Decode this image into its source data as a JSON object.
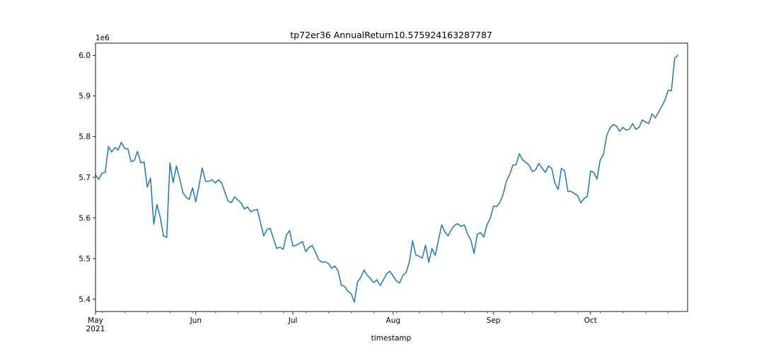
{
  "chart_data": {
    "type": "line",
    "title": "tp72er36 AnnualReturn10.575924163287787",
    "xlabel": "timestamp",
    "ylabel": "",
    "y_offset_label": "1e6",
    "ylim": [
      5.37,
      6.03
    ],
    "xlim": [
      "2021-05-01",
      "2021-10-31"
    ],
    "grid": false,
    "x_ticks": [
      {
        "date": "2021-05-01",
        "label": "May",
        "sublabel": "2021"
      },
      {
        "date": "2021-06-01",
        "label": "Jun",
        "sublabel": ""
      },
      {
        "date": "2021-07-01",
        "label": "Jul",
        "sublabel": ""
      },
      {
        "date": "2021-08-01",
        "label": "Aug",
        "sublabel": ""
      },
      {
        "date": "2021-09-01",
        "label": "Sep",
        "sublabel": ""
      },
      {
        "date": "2021-10-01",
        "label": "Oct",
        "sublabel": ""
      }
    ],
    "y_ticks": [
      {
        "value": 5.4,
        "label": "5.4"
      },
      {
        "value": 5.5,
        "label": "5.5"
      },
      {
        "value": 5.6,
        "label": "5.6"
      },
      {
        "value": 5.7,
        "label": "5.7"
      },
      {
        "value": 5.8,
        "label": "5.8"
      },
      {
        "value": 5.9,
        "label": "5.9"
      },
      {
        "value": 6.0,
        "label": "6.0"
      }
    ],
    "series": [
      {
        "color": "#1f77b4",
        "x_start": "2021-05-01",
        "x_step_days": 1,
        "values": [
          5.706,
          5.695,
          5.71,
          5.712,
          5.776,
          5.762,
          5.773,
          5.767,
          5.786,
          5.771,
          5.77,
          5.738,
          5.742,
          5.764,
          5.735,
          5.738,
          5.676,
          5.698,
          5.585,
          5.633,
          5.602,
          5.556,
          5.552,
          5.735,
          5.687,
          5.728,
          5.697,
          5.663,
          5.651,
          5.646,
          5.674,
          5.64,
          5.68,
          5.723,
          5.69,
          5.69,
          5.694,
          5.686,
          5.694,
          5.686,
          5.663,
          5.641,
          5.638,
          5.652,
          5.644,
          5.637,
          5.622,
          5.627,
          5.615,
          5.619,
          5.621,
          5.588,
          5.556,
          5.572,
          5.574,
          5.549,
          5.525,
          5.528,
          5.523,
          5.558,
          5.569,
          5.531,
          5.533,
          5.537,
          5.542,
          5.517,
          5.528,
          5.532,
          5.515,
          5.497,
          5.491,
          5.492,
          5.488,
          5.476,
          5.482,
          5.469,
          5.434,
          5.432,
          5.42,
          5.414,
          5.393,
          5.443,
          5.454,
          5.472,
          5.459,
          5.451,
          5.441,
          5.448,
          5.434,
          5.448,
          5.463,
          5.469,
          5.457,
          5.445,
          5.44,
          5.459,
          5.466,
          5.492,
          5.544,
          5.509,
          5.506,
          5.501,
          5.533,
          5.491,
          5.525,
          5.508,
          5.546,
          5.583,
          5.565,
          5.556,
          5.572,
          5.582,
          5.586,
          5.579,
          5.583,
          5.56,
          5.546,
          5.513,
          5.56,
          5.564,
          5.553,
          5.583,
          5.599,
          5.629,
          5.628,
          5.639,
          5.658,
          5.691,
          5.707,
          5.73,
          5.731,
          5.758,
          5.743,
          5.737,
          5.73,
          5.714,
          5.718,
          5.734,
          5.723,
          5.712,
          5.728,
          5.722,
          5.685,
          5.67,
          5.722,
          5.716,
          5.665,
          5.665,
          5.66,
          5.655,
          5.637,
          5.648,
          5.653,
          5.715,
          5.712,
          5.696,
          5.743,
          5.756,
          5.803,
          5.821,
          5.83,
          5.826,
          5.813,
          5.823,
          5.816,
          5.818,
          5.832,
          5.818,
          5.823,
          5.841,
          5.836,
          5.832,
          5.856,
          5.846,
          5.86,
          5.874,
          5.89,
          5.914,
          5.913,
          5.992,
          6.0
        ]
      }
    ]
  }
}
